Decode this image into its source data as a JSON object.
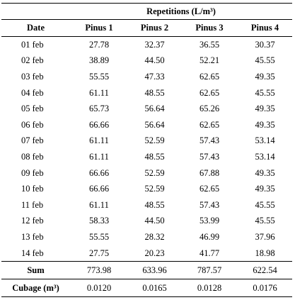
{
  "table": {
    "title": "Repetitions (L/m³)",
    "columns": [
      "Date",
      "Pinus 1",
      "Pinus 2",
      "Pinus 3",
      "Pinus 4"
    ],
    "rows": [
      {
        "date": "01 feb",
        "values": [
          "27.78",
          "32.37",
          "36.55",
          "30.37"
        ]
      },
      {
        "date": "02 feb",
        "values": [
          "38.89",
          "44.50",
          "52.21",
          "45.55"
        ]
      },
      {
        "date": "03 feb",
        "values": [
          "55.55",
          "47.33",
          "62.65",
          "49.35"
        ]
      },
      {
        "date": "04 feb",
        "values": [
          "61.11",
          "48.55",
          "62.65",
          "45.55"
        ]
      },
      {
        "date": "05 feb",
        "values": [
          "65.73",
          "56.64",
          "65.26",
          "49.35"
        ]
      },
      {
        "date": "06 feb",
        "values": [
          "66.66",
          "56.64",
          "62.65",
          "49.35"
        ]
      },
      {
        "date": "07 feb",
        "values": [
          "61.11",
          "52.59",
          "57.43",
          "53.14"
        ]
      },
      {
        "date": "08 feb",
        "values": [
          "61.11",
          "48.55",
          "57.43",
          "53.14"
        ]
      },
      {
        "date": "09 feb",
        "values": [
          "66.66",
          "52.59",
          "67.88",
          "49.35"
        ]
      },
      {
        "date": "10 feb",
        "values": [
          "66.66",
          "52.59",
          "62.65",
          "49.35"
        ]
      },
      {
        "date": "11 feb",
        "values": [
          "61.11",
          "48.55",
          "57.43",
          "45.55"
        ]
      },
      {
        "date": "12 feb",
        "values": [
          "58.33",
          "44.50",
          "53.99",
          "45.55"
        ]
      },
      {
        "date": "13 feb",
        "values": [
          "55.55",
          "28.32",
          "46.99",
          "37.96"
        ]
      },
      {
        "date": "14 feb",
        "values": [
          "27.75",
          "20.23",
          "41.77",
          "18.98"
        ]
      }
    ],
    "sum": {
      "label": "Sum",
      "values": [
        "773.98",
        "633.96",
        "787.57",
        "622.54"
      ]
    },
    "cubage": {
      "label": "Cubage (m³)",
      "values": [
        "0.0120",
        "0.0165",
        "0.0128",
        "0.0176"
      ]
    }
  }
}
